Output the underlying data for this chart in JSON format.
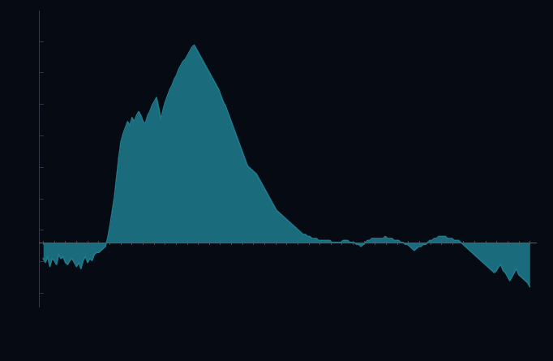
{
  "line_color": "#1e7d8f",
  "fill_color": "#1e7d8f",
  "background_color": "#060a12",
  "axis_color": "#3a3a4a",
  "zero_line_color": "#5a5a6a",
  "tick_color": "#3a3a4a",
  "figsize": [
    6.82,
    4.45
  ],
  "dpi": 100,
  "fill_alpha": 0.85,
  "y_values": [
    -8,
    -10,
    -7,
    -12,
    -8,
    -9,
    -11,
    -6,
    -8,
    -7,
    -10,
    -11,
    -9,
    -8,
    -10,
    -12,
    -10,
    -13,
    -9,
    -7,
    -10,
    -8,
    -9,
    -6,
    -5,
    -5,
    -4,
    -3,
    -2,
    2,
    8,
    15,
    22,
    32,
    42,
    50,
    54,
    57,
    60,
    58,
    62,
    60,
    63,
    65,
    63,
    60,
    59,
    63,
    65,
    68,
    70,
    72,
    67,
    61,
    66,
    70,
    73,
    76,
    78,
    81,
    83,
    86,
    88,
    90,
    91,
    93,
    95,
    97,
    98,
    96,
    94,
    92,
    90,
    88,
    86,
    84,
    82,
    80,
    78,
    76,
    73,
    70,
    68,
    65,
    62,
    59,
    56,
    53,
    50,
    47,
    44,
    41,
    38,
    37,
    36,
    35,
    34,
    32,
    30,
    28,
    26,
    24,
    22,
    20,
    18,
    16,
    15,
    14,
    13,
    12,
    11,
    10,
    9,
    8,
    7,
    6,
    5,
    4,
    4,
    3,
    3,
    2,
    2,
    2,
    1,
    1,
    1,
    1,
    1,
    1,
    0,
    0,
    0,
    0,
    0,
    1,
    1,
    1,
    0,
    0,
    0,
    -1,
    -1,
    -2,
    -1,
    0,
    1,
    1,
    2,
    2,
    2,
    2,
    2,
    2,
    3,
    2,
    2,
    2,
    1,
    1,
    1,
    0,
    0,
    -1,
    -1,
    -2,
    -3,
    -4,
    -3,
    -2,
    -2,
    -1,
    -1,
    0,
    1,
    1,
    2,
    2,
    3,
    3,
    3,
    3,
    2,
    2,
    2,
    1,
    1,
    1,
    0,
    -1,
    -2,
    -3,
    -4,
    -5,
    -6,
    -7,
    -8,
    -9,
    -10,
    -11,
    -12,
    -13,
    -14,
    -15,
    -14,
    -12,
    -11,
    -14,
    -15,
    -17,
    -19,
    -17,
    -15,
    -13,
    -16,
    -17,
    -18,
    -19,
    -20,
    -22
  ]
}
